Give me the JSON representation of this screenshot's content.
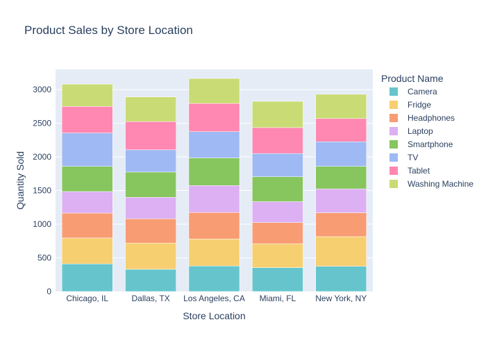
{
  "chart_data": {
    "type": "bar",
    "stacked": true,
    "title": "Product Sales by Store Location",
    "xlabel": "Store Location",
    "ylabel": "Quantity Sold",
    "legend_title": "Product Name",
    "legend_position": "right",
    "ylim": [
      0,
      3300
    ],
    "yticks": [
      0,
      500,
      1000,
      1500,
      2000,
      2500,
      3000
    ],
    "grid": true,
    "categories": [
      "Chicago, IL",
      "Dallas, TX",
      "Los Angeles, CA",
      "Miami, FL",
      "New York, NY"
    ],
    "series": [
      {
        "name": "Camera",
        "color": "#66c5cc",
        "values": [
          410,
          330,
          380,
          355,
          375
        ]
      },
      {
        "name": "Fridge",
        "color": "#f6cf71",
        "values": [
          385,
          390,
          400,
          355,
          440
        ]
      },
      {
        "name": "Headphones",
        "color": "#f89c74",
        "values": [
          370,
          360,
          395,
          315,
          355
        ]
      },
      {
        "name": "Laptop",
        "color": "#dcb0f2",
        "values": [
          320,
          320,
          400,
          310,
          355
        ]
      },
      {
        "name": "Smartphone",
        "color": "#87c55f",
        "values": [
          375,
          375,
          410,
          370,
          335
        ]
      },
      {
        "name": "TV",
        "color": "#9eb9f3",
        "values": [
          495,
          330,
          390,
          345,
          365
        ]
      },
      {
        "name": "Tablet",
        "color": "#fe88b1",
        "values": [
          395,
          420,
          420,
          385,
          345
        ]
      },
      {
        "name": "Washing Machine",
        "color": "#c9db74",
        "values": [
          330,
          365,
          370,
          390,
          360
        ]
      }
    ]
  }
}
